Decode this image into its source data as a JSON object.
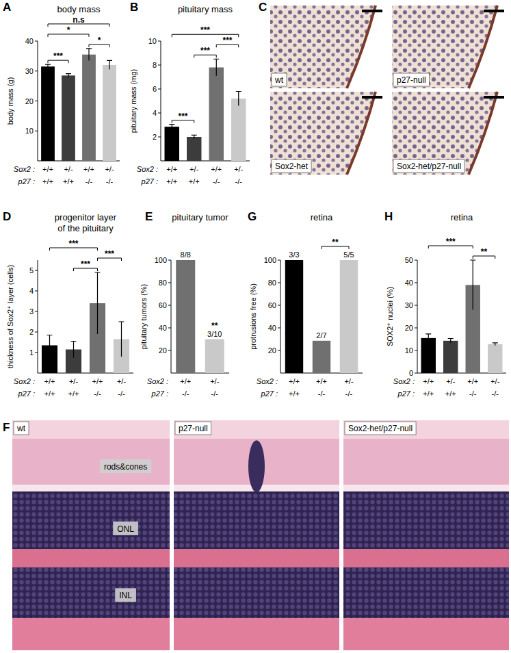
{
  "chart_data": [
    {
      "type": "bar",
      "panel_label": "A",
      "title": "body mass",
      "ylabel": "body mass (g)",
      "x_label_rows": [
        {
          "name": "Sox2 :",
          "labels": [
            "+/+",
            "+/-",
            "+/+",
            "+/-"
          ]
        },
        {
          "name": "p27 :",
          "labels": [
            "+/+",
            "+/+",
            "-/-",
            "-/-"
          ]
        }
      ],
      "values": [
        31.5,
        28.5,
        35.5,
        32
      ],
      "errors": [
        0.7,
        0.6,
        2.0,
        1.5
      ],
      "colors": [
        "#000000",
        "#3c3c3c",
        "#707070",
        "#c9c9c9"
      ],
      "ylim": [
        0,
        40
      ],
      "yticks": [
        10,
        20,
        30,
        40
      ],
      "annotations": [
        {
          "from": 0,
          "to": 1,
          "text": "***"
        },
        {
          "from": 0,
          "to": 2,
          "text": "*"
        },
        {
          "from": 0,
          "to": 3,
          "text": "n.s"
        },
        {
          "from": 2,
          "to": 3,
          "text": "*"
        }
      ]
    },
    {
      "type": "bar",
      "panel_label": "B",
      "title": "pituitary mass",
      "ylabel": "pituitary mass (mg)",
      "x_label_rows": [
        {
          "name": "Sox2 :",
          "labels": [
            "+/+",
            "+/-",
            "+/+",
            "+/-"
          ]
        },
        {
          "name": "p27 :",
          "labels": [
            "+/+",
            "+/+",
            "-/-",
            "-/-"
          ]
        }
      ],
      "values": [
        2.85,
        2.0,
        7.8,
        5.2
      ],
      "errors": [
        0.2,
        0.15,
        0.7,
        0.6
      ],
      "colors": [
        "#000000",
        "#3c3c3c",
        "#707070",
        "#c9c9c9"
      ],
      "ylim": [
        0,
        10
      ],
      "yticks": [
        2,
        4,
        6,
        8,
        10
      ],
      "annotations": [
        {
          "from": 0,
          "to": 1,
          "text": "***"
        },
        {
          "from": 1,
          "to": 2,
          "text": "***"
        },
        {
          "from": 2,
          "to": 3,
          "text": "***"
        },
        {
          "from": 0,
          "to": 3,
          "text": "***"
        }
      ]
    },
    {
      "type": "bar",
      "panel_label": "D",
      "title": "progenitor layer",
      "subtitle": "of the pituitary",
      "ylabel": "thickness of Sox2⁺ layer (cells)",
      "x_label_rows": [
        {
          "name": "Sox2 :",
          "labels": [
            "+/+",
            "+/-",
            "+/+",
            "+/-"
          ]
        },
        {
          "name": "p27 :",
          "labels": [
            "+/+",
            "+/+",
            "-/-",
            "-/-"
          ]
        }
      ],
      "values": [
        1.35,
        1.15,
        3.4,
        1.65
      ],
      "errors": [
        0.5,
        0.4,
        1.5,
        0.85
      ],
      "colors": [
        "#000000",
        "#3c3c3c",
        "#707070",
        "#c9c9c9"
      ],
      "ylim": [
        0,
        5.5
      ],
      "yticks": [
        1,
        2,
        3,
        4,
        5
      ],
      "annotations": [
        {
          "from": 0,
          "to": 2,
          "text": "***"
        },
        {
          "from": 1,
          "to": 2,
          "text": "***"
        },
        {
          "from": 2,
          "to": 3,
          "text": "***"
        }
      ]
    },
    {
      "type": "bar",
      "panel_label": "E",
      "title": "pituitary tumor",
      "ylabel": "pituitary tumors (%)",
      "x_label_rows": [
        {
          "name": "Sox2 :",
          "labels": [
            "+/+",
            "+/-"
          ]
        },
        {
          "name": "p27 :",
          "labels": [
            "-/-",
            "-/-"
          ]
        }
      ],
      "values": [
        100,
        30
      ],
      "value_labels": [
        "8/8",
        "3/10"
      ],
      "colors": [
        "#707070",
        "#c9c9c9"
      ],
      "ylim": [
        0,
        100
      ],
      "yticks": [
        20,
        40,
        60,
        80,
        100
      ],
      "annotations": [
        {
          "from": 1,
          "to": 1,
          "text": "**"
        }
      ]
    },
    {
      "type": "bar",
      "panel_label": "G",
      "title": "retina",
      "ylabel": "protrusions free (%)",
      "x_label_rows": [
        {
          "name": "Sox2 :",
          "labels": [
            "+/+",
            "+/+",
            "+/-"
          ]
        },
        {
          "name": "p27 :",
          "labels": [
            "+/+",
            "-/-",
            "-/-"
          ]
        }
      ],
      "values": [
        100,
        28.6,
        100
      ],
      "value_labels": [
        "3/3",
        "2/7",
        "5/5"
      ],
      "colors": [
        "#000000",
        "#707070",
        "#c9c9c9"
      ],
      "ylim": [
        0,
        100
      ],
      "yticks": [
        20,
        40,
        60,
        80,
        100
      ],
      "annotations": [
        {
          "from": 1,
          "to": 2,
          "text": "**"
        }
      ]
    },
    {
      "type": "bar",
      "panel_label": "H",
      "title": "retina",
      "ylabel": "SOX2⁺ nuclei (%)",
      "x_label_rows": [
        {
          "name": "Sox2 :",
          "labels": [
            "+/+",
            "+/-",
            "+/+",
            "+/-"
          ]
        },
        {
          "name": "p27 :",
          "labels": [
            "+/+",
            "+/+",
            "-/-",
            "-/-"
          ]
        }
      ],
      "values": [
        15.5,
        14.3,
        39,
        12.8
      ],
      "errors": [
        1.8,
        1.0,
        11,
        0.6
      ],
      "colors": [
        "#000000",
        "#3c3c3c",
        "#707070",
        "#c9c9c9"
      ],
      "ylim": [
        0,
        50
      ],
      "yticks": [
        0,
        10,
        20,
        30,
        40,
        50
      ],
      "annotations": [
        {
          "from": 0,
          "to": 2,
          "text": "***"
        },
        {
          "from": 2,
          "to": 3,
          "text": "**"
        }
      ]
    }
  ],
  "image_panels": [
    {
      "panel_label": "C",
      "images": [
        {
          "label": "wt"
        },
        {
          "label": "p27-null"
        },
        {
          "label": "Sox2-het"
        },
        {
          "label": "Sox2-het/p27-null"
        }
      ]
    },
    {
      "panel_label": "F",
      "images": [
        {
          "label": "wt",
          "regions": [
            "rods&cones",
            "ONL",
            "INL"
          ]
        },
        {
          "label": "p27-null"
        },
        {
          "label": "Sox2-het/p27-null"
        }
      ]
    }
  ]
}
